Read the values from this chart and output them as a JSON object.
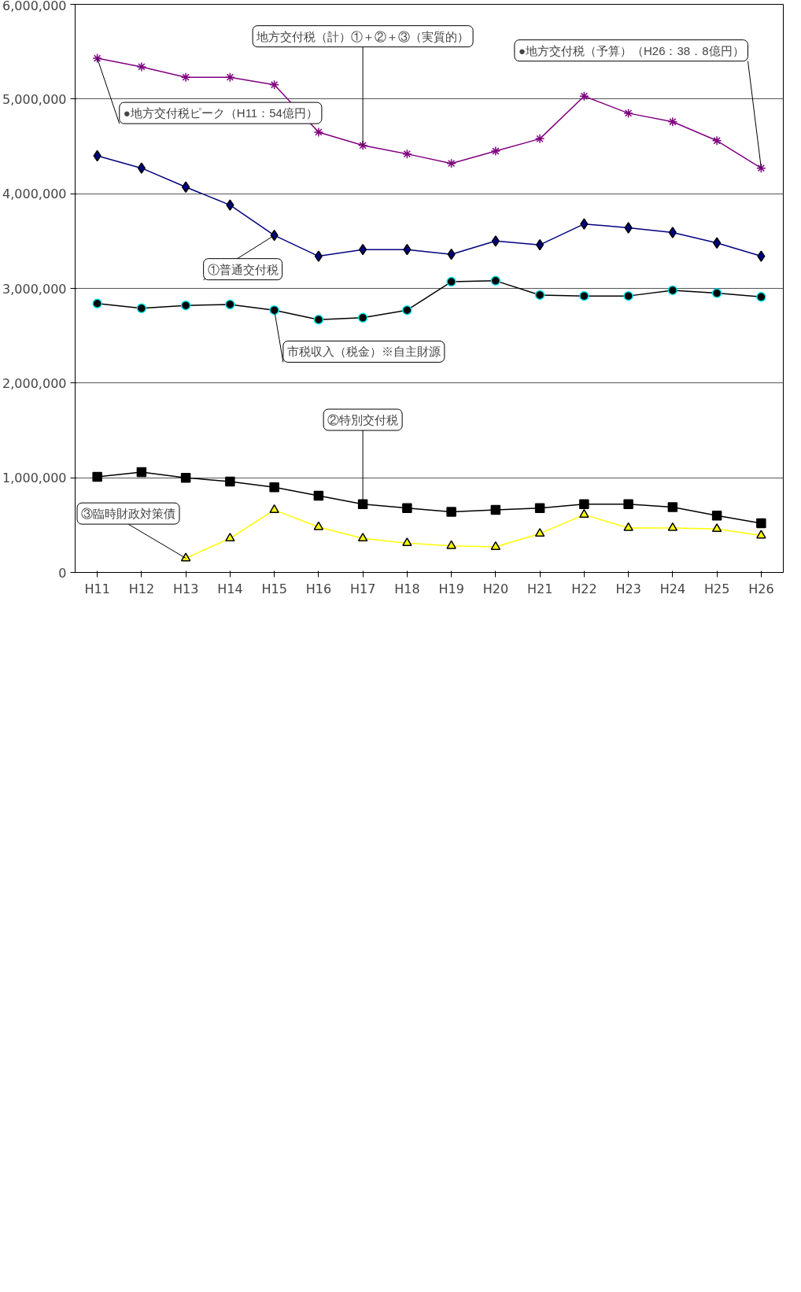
{
  "chart_data": {
    "type": "line",
    "categories": [
      "H11",
      "H12",
      "H13",
      "H14",
      "H15",
      "H16",
      "H17",
      "H18",
      "H19",
      "H20",
      "H21",
      "H22",
      "H23",
      "H24",
      "H25",
      "H26"
    ],
    "series": [
      {
        "color": "#800080",
        "marker": "cross",
        "values": [
          5430000,
          5340000,
          5230000,
          5230000,
          5150000,
          4650000,
          4510000,
          4420000,
          4320000,
          4450000,
          4580000,
          5030000,
          4850000,
          4760000,
          4560000,
          4270000
        ]
      },
      {
        "color": "#000080",
        "marker": "diamond",
        "values": [
          4400000,
          4270000,
          4070000,
          3880000,
          3560000,
          3340000,
          3410000,
          3410000,
          3360000,
          3500000,
          3460000,
          3680000,
          3640000,
          3590000,
          3480000,
          3340000
        ]
      },
      {
        "color": "#000000",
        "marker": "circle",
        "values": [
          2840000,
          2790000,
          2820000,
          2830000,
          2770000,
          2670000,
          2690000,
          2770000,
          3070000,
          3080000,
          2930000,
          2920000,
          2920000,
          2980000,
          2950000,
          2910000
        ]
      },
      {
        "color": "#000000",
        "marker": "square",
        "values": [
          1010000,
          1060000,
          1000000,
          960000,
          900000,
          810000,
          720000,
          680000,
          640000,
          660000,
          680000,
          720000,
          720000,
          690000,
          600000,
          520000
        ]
      },
      {
        "color": "#ffff00",
        "marker": "triangle",
        "values": [
          null,
          null,
          150000,
          360000,
          660000,
          480000,
          360000,
          310000,
          280000,
          270000,
          410000,
          610000,
          470000,
          470000,
          460000,
          390000
        ]
      }
    ],
    "ylim": [
      0,
      6000000
    ],
    "yticks": [
      {
        "value": 0,
        "label": "0"
      },
      {
        "value": 1000000,
        "label": "1,000,000"
      },
      {
        "value": 2000000,
        "label": "2,000,000"
      },
      {
        "value": 3000000,
        "label": "3,000,000"
      },
      {
        "value": 4000000,
        "label": "4,000,000"
      },
      {
        "value": 5000000,
        "label": "5,000,000"
      },
      {
        "value": 6000000,
        "label": "6,000,000"
      }
    ],
    "grid": "y",
    "annotations": [
      {
        "text": "●地方交付税ピーク（H11：54億円）",
        "x": "H11",
        "y": 5430000
      },
      {
        "text": "●地方交付税（予算）（H26：38．8億円）",
        "x": "H26",
        "y": 4270000
      },
      {
        "text": "地方交付税（計）①＋②＋③（実質的）",
        "x": "H17",
        "y": 4510000
      },
      {
        "text": "①普通交付税",
        "x": "H15",
        "y": 3560000
      },
      {
        "text": "市税収入（税金）※自主財源",
        "x": "H15",
        "y": 2770000
      },
      {
        "text": "②特別交付税",
        "x": "H17",
        "y": 720000
      },
      {
        "text": "③臨時財政対策債",
        "x": "H13",
        "y": 150000
      }
    ]
  }
}
